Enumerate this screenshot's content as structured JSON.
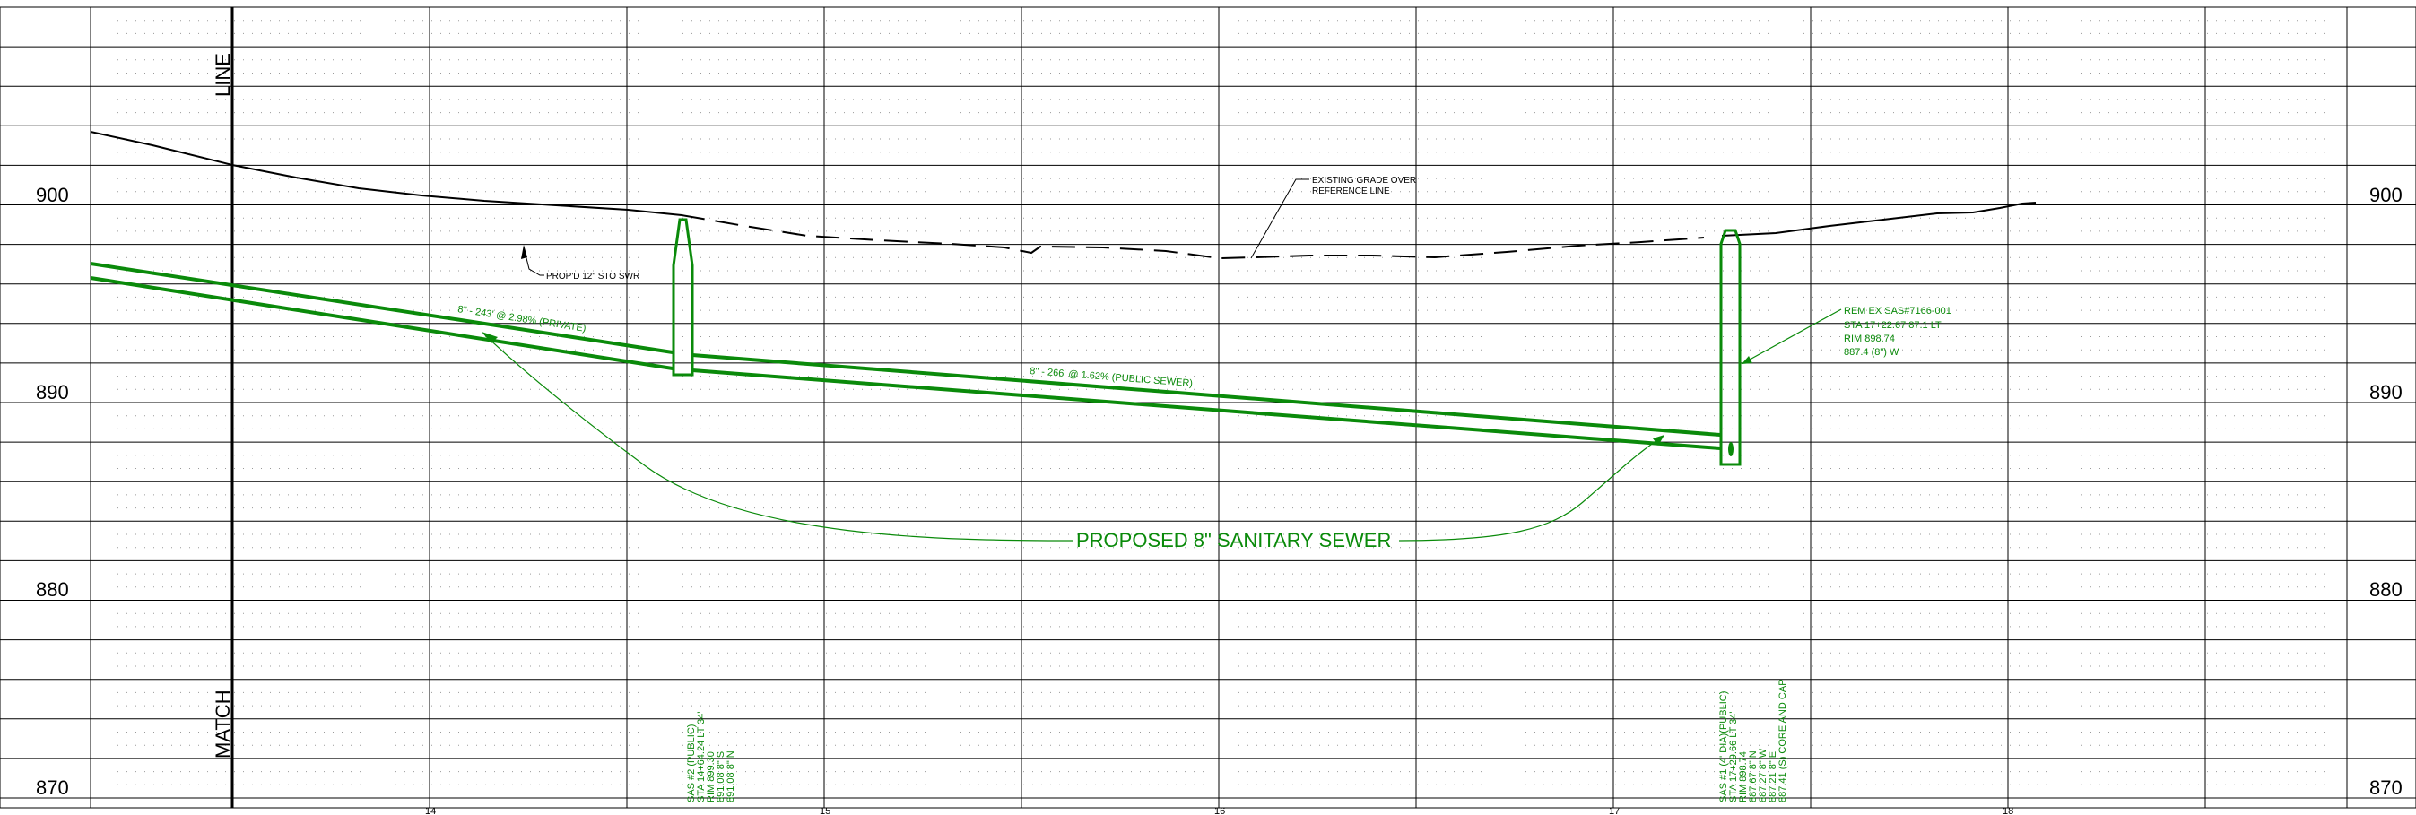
{
  "sheet": {
    "side_labels": {
      "top": "LINE",
      "bottom": "MATCH"
    },
    "elevation_labels": [
      "900",
      "890",
      "880",
      "870"
    ],
    "station_labels": [
      "14",
      "15",
      "16",
      "17",
      "18"
    ],
    "colors": {
      "grid": "#000000",
      "sewer": "#0a8a0a",
      "dots": "#9a9a9a"
    }
  },
  "annotations": {
    "existing_grade": [
      "EXISTING GRADE OVER",
      "REFERENCE LINE"
    ],
    "storm_sewer": "PROP'D 12\" STO SWR",
    "pipe_private": "8\" - 243' @ 2.98% (PRIVATE)",
    "pipe_public": "8\" - 266' @ 1.62% (PUBLIC SEWER)",
    "proposed_sewer": "PROPOSED 8\" SANITARY SEWER",
    "rem_ex": [
      "REM EX SAS#7166-001",
      "STA 17+22.67 87.1 LT",
      "RIM 898.74",
      "887.4 (8\") W"
    ],
    "sas2": [
      "SAS #2 (PUBLIC)",
      "STA 14+64.24 LT 34'",
      "RIM 899.30",
      "891.08 8\" S",
      "891.08 8\" N"
    ],
    "sas1": [
      "SAS #1 (4' DIA)(PUBLIC)",
      "STA 17+29.66 LT 34'",
      "RIM 898.74",
      "887.67 8\" N",
      "887.27 8\" W",
      "887.21 8\" E",
      "887.41 (S) CORE AND CAP"
    ]
  }
}
